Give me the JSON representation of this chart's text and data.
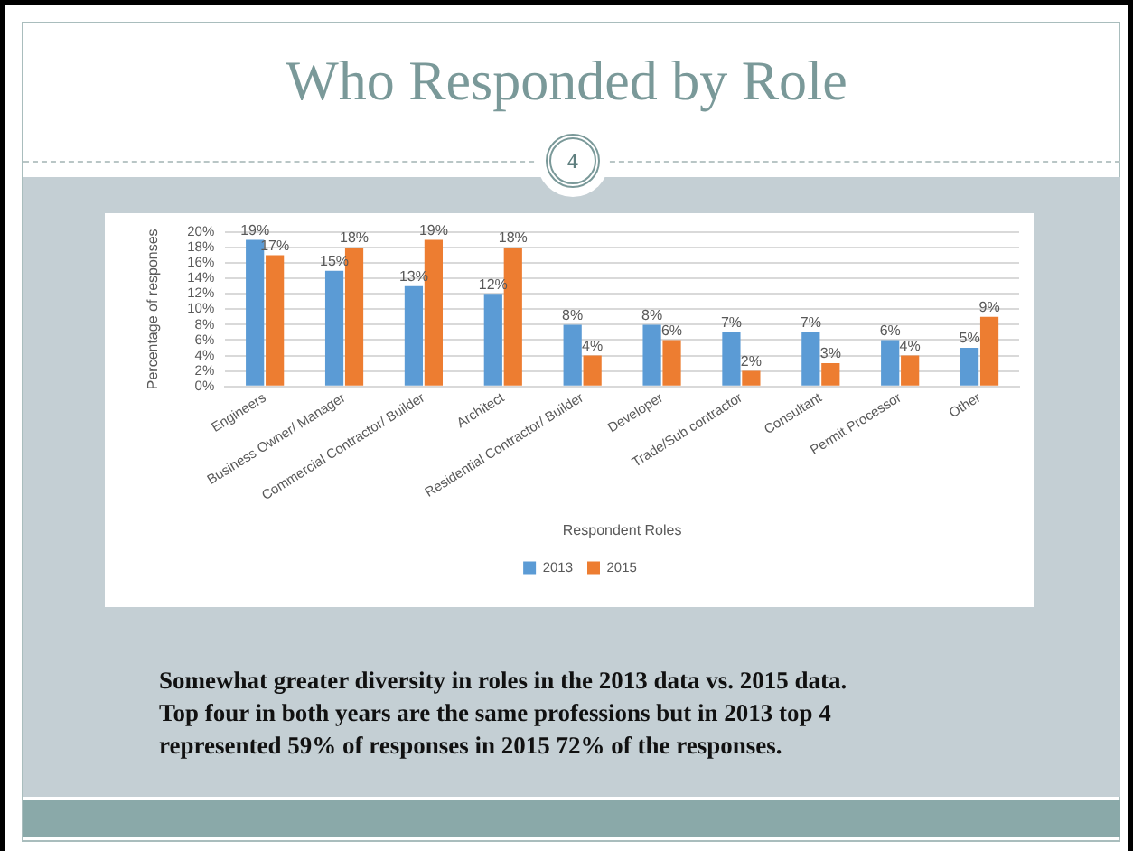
{
  "chart_data": {
    "type": "bar",
    "title": "Who Responded by Role",
    "categories": [
      "Engineers",
      "Business Owner/ Manager",
      "Commercial Contractor/ Builder",
      "Architect",
      "Residential Contractor/ Builder",
      "Developer",
      "Trade/Sub contractor",
      "Consultant",
      "Permit Processor",
      "Other"
    ],
    "series": [
      {
        "name": "2013",
        "color": "#5b9bd5",
        "values": [
          19,
          15,
          13,
          12,
          8,
          8,
          7,
          7,
          6,
          5
        ],
        "value_labels": [
          "19%",
          "15%",
          "13%",
          "12%",
          "8%",
          "8%",
          "7%",
          "7%",
          "6%",
          "5%"
        ]
      },
      {
        "name": "2015",
        "color": "#ed7d31",
        "values": [
          17,
          18,
          19,
          18,
          4,
          6,
          2,
          3,
          4,
          9
        ],
        "value_labels": [
          "17%",
          "18%",
          "19%",
          "18%",
          "4%",
          "6%",
          "2%",
          "3%",
          "4%",
          "9%"
        ]
      }
    ],
    "xlabel": "Respondent Roles",
    "ylabel": "Percentage of responses",
    "ylim": [
      0,
      20
    ],
    "yticks": [
      {
        "value": 0,
        "label": "0%"
      },
      {
        "value": 2,
        "label": "2%"
      },
      {
        "value": 4,
        "label": "4%"
      },
      {
        "value": 6,
        "label": "6%"
      },
      {
        "value": 8,
        "label": "8%"
      },
      {
        "value": 10,
        "label": "10%"
      },
      {
        "value": 12,
        "label": "12%"
      },
      {
        "value": 14,
        "label": "14%"
      },
      {
        "value": 16,
        "label": "16%"
      },
      {
        "value": 18,
        "label": "18%"
      },
      {
        "value": 20,
        "label": "20%"
      }
    ],
    "grid": "y",
    "legend": "bottom",
    "annotations": [
      "4",
      "Somewhat greater diversity in roles in the 2013 data vs. 2015 data.",
      "Top four in both years are the same professions but in 2013 top 4 represented 59% of responses in 2015 72% of the responses."
    ]
  }
}
